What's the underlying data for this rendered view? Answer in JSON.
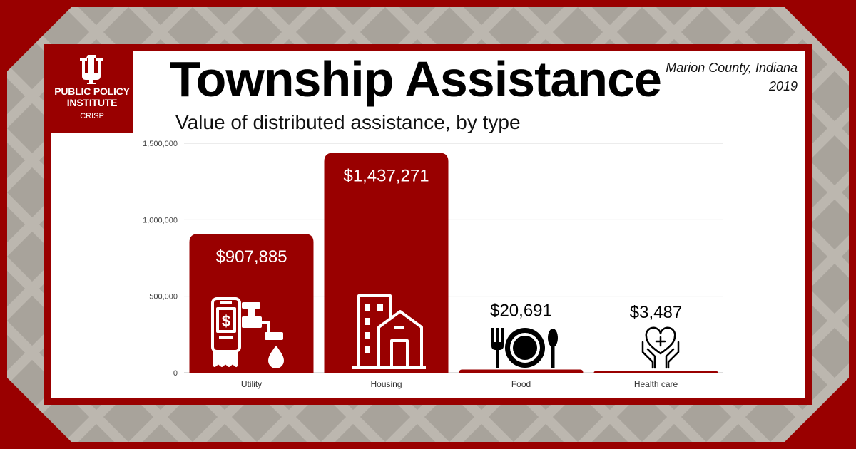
{
  "header": {
    "title": "Township Assistance",
    "subtitle": "Value of distributed assistance, by type",
    "location": "Marion County, Indiana",
    "year": "2019"
  },
  "logo": {
    "line1": "PUBLIC POLICY",
    "line2": "INSTITUTE",
    "line3": "CRISP"
  },
  "colors": {
    "accent": "#990000",
    "background": "#a8a39b",
    "grid": "#d9d9d9"
  },
  "chart_data": {
    "type": "bar",
    "categories": [
      "Utility",
      "Housing",
      "Food",
      "Health care"
    ],
    "values": [
      907885,
      1437271,
      20691,
      3487
    ],
    "value_labels": [
      "$907,885",
      "$1,437,271",
      "$20,691",
      "$3,487"
    ],
    "icons": [
      "utility-bill-faucet-icon",
      "building-house-icon",
      "plate-fork-spoon-icon",
      "hands-heart-icon"
    ],
    "yticks": [
      0,
      500000,
      1000000,
      1500000
    ],
    "ytick_labels": [
      "0",
      "500,000",
      "1,000,000",
      "1,500,000"
    ],
    "ylim": [
      0,
      1500000
    ],
    "grid": true
  }
}
